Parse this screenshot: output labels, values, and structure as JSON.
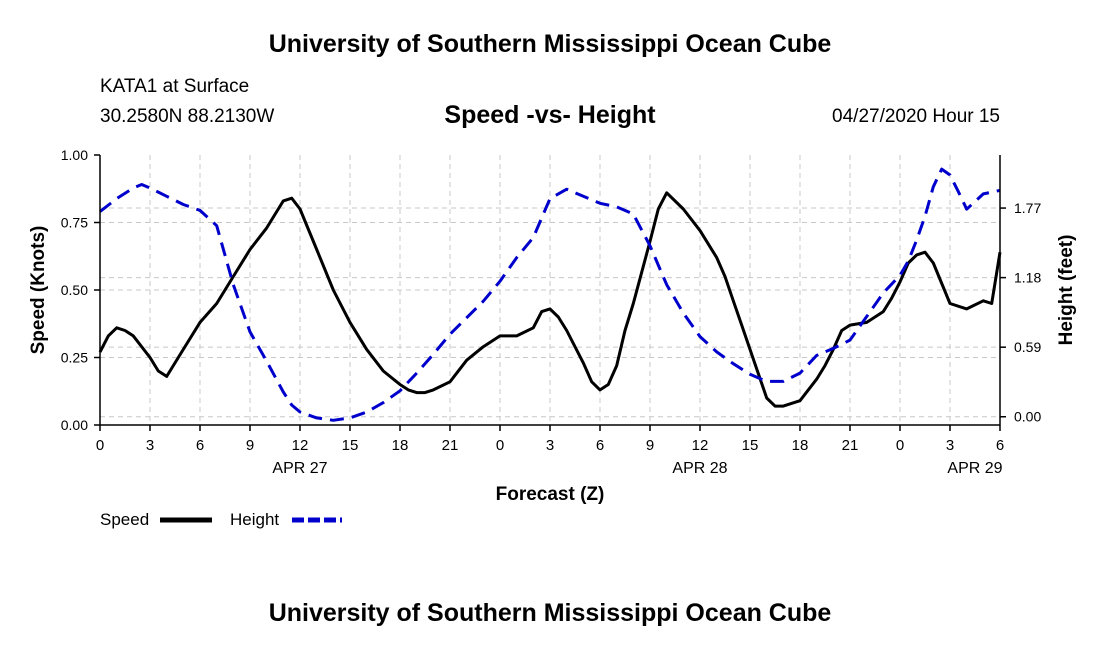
{
  "header": {
    "title": "University of Southern Mississippi Ocean Cube",
    "station": "KATA1 at Surface",
    "coords": "30.2580N 88.2130W",
    "subtitle": "Speed -vs- Height",
    "datetime": "04/27/2020 Hour 15"
  },
  "footer": {
    "title": "University of Southern Mississippi Ocean Cube"
  },
  "legend": {
    "items": [
      {
        "label": "Speed",
        "color": "#000000",
        "style": "solid"
      },
      {
        "label": "Height",
        "color": "#0000cc",
        "style": "dashed"
      }
    ]
  },
  "chart_data": {
    "type": "line",
    "xlabel": "Forecast (Z)",
    "ylabel": "Speed (Knots)",
    "y2label": "Height (feet)",
    "xlim": [
      0,
      54
    ],
    "ylim": [
      0,
      1
    ],
    "y2lim": [
      -0.07,
      2.22
    ],
    "x_ticks": [
      0,
      3,
      6,
      9,
      12,
      15,
      18,
      21,
      24,
      27,
      30,
      33,
      36,
      39,
      42,
      45,
      48,
      51,
      54
    ],
    "x_tick_labels": [
      "0",
      "3",
      "6",
      "9",
      "12",
      "15",
      "18",
      "21",
      "0",
      "3",
      "6",
      "9",
      "12",
      "15",
      "18",
      "21",
      "0",
      "3",
      "6"
    ],
    "date_labels": [
      {
        "x": 12,
        "label": "APR 27"
      },
      {
        "x": 36,
        "label": "APR 28"
      },
      {
        "x": 52.5,
        "label": "APR 29"
      }
    ],
    "y_ticks": [
      0,
      0.25,
      0.5,
      0.75,
      1.0
    ],
    "y_tick_labels": [
      "0.00",
      "0.25",
      "0.50",
      "0.75",
      "1.00"
    ],
    "y2_ticks": [
      0,
      0.59,
      1.18,
      1.77
    ],
    "y2_tick_labels": [
      "0.00",
      "0.59",
      "1.18",
      "1.77"
    ],
    "grid": true,
    "series": [
      {
        "name": "Speed",
        "axis": "left",
        "color": "#000000",
        "dashed": false,
        "x": [
          0,
          0.5,
          1,
          1.5,
          2,
          3,
          3.5,
          4,
          5,
          6,
          7,
          8,
          9,
          10,
          11,
          11.5,
          12,
          13,
          14,
          15,
          16,
          17,
          18,
          18.5,
          19,
          19.5,
          20,
          21,
          22,
          23,
          24,
          25,
          26,
          26.5,
          27,
          27.5,
          28,
          29,
          29.5,
          30,
          30.5,
          31,
          31.5,
          32,
          33,
          33.5,
          34,
          35,
          36,
          37,
          37.5,
          38,
          38.5,
          39,
          40,
          40.5,
          41,
          42,
          42.5,
          43,
          43.5,
          44,
          44.5,
          45,
          46,
          47,
          47.5,
          48,
          48.5,
          49,
          49.5,
          50,
          51,
          52,
          53,
          53.5,
          54
        ],
        "y": [
          0.27,
          0.33,
          0.36,
          0.35,
          0.33,
          0.25,
          0.2,
          0.18,
          0.28,
          0.38,
          0.45,
          0.55,
          0.65,
          0.73,
          0.83,
          0.84,
          0.8,
          0.65,
          0.5,
          0.38,
          0.28,
          0.2,
          0.15,
          0.13,
          0.12,
          0.12,
          0.13,
          0.16,
          0.24,
          0.29,
          0.33,
          0.33,
          0.36,
          0.42,
          0.43,
          0.4,
          0.35,
          0.23,
          0.16,
          0.13,
          0.15,
          0.22,
          0.35,
          0.45,
          0.68,
          0.8,
          0.86,
          0.8,
          0.72,
          0.62,
          0.55,
          0.46,
          0.37,
          0.28,
          0.1,
          0.07,
          0.07,
          0.09,
          0.13,
          0.17,
          0.22,
          0.28,
          0.35,
          0.37,
          0.38,
          0.42,
          0.47,
          0.53,
          0.6,
          0.63,
          0.64,
          0.6,
          0.45,
          0.43,
          0.46,
          0.45,
          0.64
        ]
      },
      {
        "name": "Height",
        "axis": "right",
        "color": "#0000cc",
        "dashed": true,
        "x": [
          0,
          1,
          2,
          2.5,
          3,
          4,
          5,
          6,
          7,
          8,
          9,
          10,
          11,
          11.5,
          12,
          13,
          14,
          15,
          16,
          17,
          18,
          19,
          20,
          21,
          22,
          23,
          24,
          25,
          26,
          27,
          28,
          29,
          30,
          31,
          32,
          33,
          34,
          35,
          36,
          37,
          38,
          39,
          40,
          41,
          42,
          43,
          44,
          45,
          46,
          47,
          48,
          48.5,
          49,
          49.5,
          50,
          50.5,
          51,
          51.5,
          52,
          53,
          54
        ],
        "y": [
          1.74,
          1.85,
          1.94,
          1.97,
          1.94,
          1.87,
          1.8,
          1.75,
          1.62,
          1.12,
          0.72,
          0.47,
          0.21,
          0.1,
          0.04,
          -0.01,
          -0.03,
          -0.01,
          0.04,
          0.12,
          0.22,
          0.37,
          0.53,
          0.7,
          0.84,
          0.98,
          1.15,
          1.35,
          1.52,
          1.85,
          1.93,
          1.87,
          1.81,
          1.78,
          1.72,
          1.45,
          1.12,
          0.88,
          0.68,
          0.55,
          0.45,
          0.36,
          0.3,
          0.3,
          0.37,
          0.52,
          0.58,
          0.65,
          0.85,
          1.05,
          1.2,
          1.32,
          1.5,
          1.7,
          1.95,
          2.1,
          2.05,
          1.91,
          1.76,
          1.89,
          1.92
        ]
      }
    ]
  }
}
